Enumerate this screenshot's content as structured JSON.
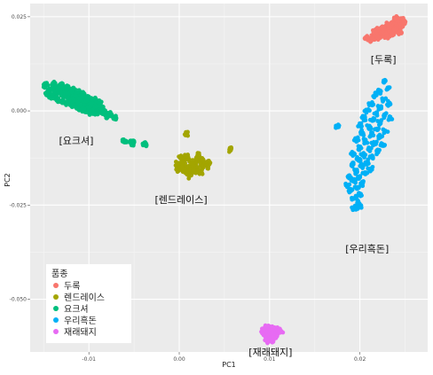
{
  "chart_data": {
    "type": "scatter",
    "xlabel": "PC1",
    "ylabel": "PC2",
    "xlim": [
      -0.0165,
      0.0275
    ],
    "ylim": [
      -0.064,
      0.0285
    ],
    "x_ticks": [
      {
        "value": -0.01,
        "label": "-0.01"
      },
      {
        "value": 0.0,
        "label": "0.00"
      },
      {
        "value": 0.01,
        "label": "0.01"
      },
      {
        "value": 0.02,
        "label": "0.02"
      }
    ],
    "y_ticks": [
      {
        "value": 0.025,
        "label": "0.025"
      },
      {
        "value": 0.0,
        "label": "0.000"
      },
      {
        "value": -0.025,
        "label": "-0.025"
      },
      {
        "value": -0.05,
        "label": "-0.050"
      }
    ],
    "grid": true,
    "panel_background": "#ebebeb",
    "legend": {
      "title": "품종",
      "position": "bottom-left",
      "items": [
        "두록",
        "렌드레이스",
        "요크셔",
        "우리흑돈",
        "재래돼지"
      ]
    },
    "series": [
      {
        "name": "두록",
        "color": "#F8766D",
        "annotation": "[두록]",
        "annotation_at": [
          0.0226,
          0.0127
        ],
        "points": [
          [
            0.0215,
            0.0195
          ],
          [
            0.0218,
            0.0202
          ],
          [
            0.0221,
            0.0206
          ],
          [
            0.0224,
            0.0212
          ],
          [
            0.0226,
            0.0216
          ],
          [
            0.0229,
            0.0219
          ],
          [
            0.0231,
            0.0222
          ],
          [
            0.0234,
            0.0225
          ],
          [
            0.0236,
            0.0228
          ],
          [
            0.0239,
            0.0231
          ],
          [
            0.0241,
            0.0234
          ],
          [
            0.0243,
            0.0237
          ],
          [
            0.0245,
            0.024
          ],
          [
            0.0247,
            0.0242
          ],
          [
            0.0222,
            0.0195
          ],
          [
            0.0228,
            0.0203
          ],
          [
            0.0233,
            0.021
          ],
          [
            0.0238,
            0.0216
          ],
          [
            0.0243,
            0.0223
          ],
          [
            0.0246,
            0.0229
          ],
          [
            0.0212,
            0.0188
          ],
          [
            0.023,
            0.0197
          ],
          [
            0.0236,
            0.0206
          ],
          [
            0.0241,
            0.0214
          ],
          [
            0.022,
            0.0215
          ],
          [
            0.0226,
            0.0222
          ],
          [
            0.0232,
            0.023
          ],
          [
            0.0208,
            0.0192
          ],
          [
            0.0244,
            0.021
          ],
          [
            0.0249,
            0.0236
          ],
          [
            0.024,
            0.0244
          ],
          [
            0.0216,
            0.0208
          ]
        ]
      },
      {
        "name": "렌드레이스",
        "color": "#A3A500",
        "annotation": "[렌드레이스]",
        "annotation_at": [
          0.0002,
          -0.0245
        ],
        "points": [
          [
            0.0002,
            -0.0125
          ],
          [
            0.0008,
            -0.0128
          ],
          [
            0.0013,
            -0.0132
          ],
          [
            0.0018,
            -0.0136
          ],
          [
            0.0022,
            -0.013
          ],
          [
            0.0025,
            -0.014
          ],
          [
            0.0015,
            -0.0145
          ],
          [
            0.001,
            -0.015
          ],
          [
            0.0005,
            -0.0141
          ],
          [
            0.0,
            -0.0147
          ],
          [
            0.002,
            -0.0151
          ],
          [
            0.0027,
            -0.0145
          ],
          [
            0.0012,
            -0.0156
          ],
          [
            0.0006,
            -0.016
          ],
          [
            0.0017,
            -0.0163
          ],
          [
            0.0003,
            -0.0135
          ],
          [
            0.0023,
            -0.0157
          ],
          [
            0.003,
            -0.0138
          ],
          [
            0.0009,
            -0.0166
          ],
          [
            -0.0001,
            -0.0156
          ],
          [
            0.0014,
            -0.0139
          ],
          [
            0.0019,
            -0.0125
          ],
          [
            0.0007,
            -0.0119
          ],
          [
            0.0026,
            -0.0129
          ],
          [
            0.0032,
            -0.0147
          ],
          [
            0.0011,
            -0.0172
          ],
          [
            0.0033,
            -0.0135
          ],
          [
            0.0024,
            -0.0165
          ],
          [
            0.0004,
            -0.0152
          ],
          [
            0.0016,
            -0.0158
          ],
          [
            0.0008,
            -0.0062
          ],
          [
            0.0057,
            -0.0103
          ],
          [
            -0.0002,
            -0.014
          ],
          [
            0.0021,
            -0.0118
          ]
        ]
      },
      {
        "name": "요크셔",
        "color": "#00BF7D",
        "annotation": "[요크셔]",
        "annotation_at": [
          -0.0114,
          -0.0088
        ],
        "points": [
          [
            -0.0148,
            0.0068
          ],
          [
            -0.0144,
            0.0055
          ],
          [
            -0.014,
            0.0062
          ],
          [
            -0.0137,
            0.005
          ],
          [
            -0.0133,
            0.0058
          ],
          [
            -0.013,
            0.0044
          ],
          [
            -0.0127,
            0.0053
          ],
          [
            -0.0124,
            0.0039
          ],
          [
            -0.0121,
            0.0048
          ],
          [
            -0.0118,
            0.0032
          ],
          [
            -0.0115,
            0.0041
          ],
          [
            -0.0112,
            0.0025
          ],
          [
            -0.0109,
            0.0035
          ],
          [
            -0.0106,
            0.0018
          ],
          [
            -0.0103,
            0.0028
          ],
          [
            -0.01,
            0.0012
          ],
          [
            -0.0097,
            0.002
          ],
          [
            -0.0094,
            0.0005
          ],
          [
            -0.0091,
            0.0012
          ],
          [
            -0.0088,
            -0.0001
          ],
          [
            -0.0085,
            0.0004
          ],
          [
            -0.0082,
            -0.0006
          ],
          [
            -0.0146,
            0.0043
          ],
          [
            -0.0141,
            0.0037
          ],
          [
            -0.0135,
            0.0031
          ],
          [
            -0.0129,
            0.0026
          ],
          [
            -0.0123,
            0.0021
          ],
          [
            -0.0117,
            0.0015
          ],
          [
            -0.0111,
            0.0009
          ],
          [
            -0.0105,
            0.0003
          ],
          [
            -0.0099,
            -0.0003
          ],
          [
            -0.0093,
            -0.0008
          ],
          [
            -0.0139,
            0.0073
          ],
          [
            -0.0131,
            0.0067
          ],
          [
            -0.0125,
            0.0061
          ],
          [
            -0.0119,
            0.0056
          ],
          [
            -0.0113,
            0.005
          ],
          [
            -0.0107,
            0.0044
          ],
          [
            -0.0101,
            0.0038
          ],
          [
            -0.0095,
            0.003
          ],
          [
            -0.0089,
            0.0022
          ],
          [
            -0.008,
            -0.0012
          ],
          [
            -0.0075,
            -0.001
          ],
          [
            -0.0071,
            -0.0019
          ],
          [
            -0.006,
            -0.008
          ],
          [
            -0.0052,
            -0.0085
          ],
          [
            -0.0038,
            -0.0088
          ]
        ]
      },
      {
        "name": "우리흑돈",
        "color": "#00B0F6",
        "annotation": "[우리흑돈]",
        "annotation_at": [
          0.0208,
          -0.0375
        ],
        "points": [
          [
            0.0228,
            0.008
          ],
          [
            0.0223,
            0.0052
          ],
          [
            0.0217,
            0.0041
          ],
          [
            0.0226,
            0.003
          ],
          [
            0.0212,
            0.0018
          ],
          [
            0.0221,
            0.001
          ],
          [
            0.0208,
            0.0002
          ],
          [
            0.0218,
            -0.0006
          ],
          [
            0.0227,
            -0.0012
          ],
          [
            0.0205,
            -0.0018
          ],
          [
            0.0214,
            -0.0024
          ],
          [
            0.0222,
            -0.003
          ],
          [
            0.02,
            -0.0036
          ],
          [
            0.021,
            -0.0042
          ],
          [
            0.0219,
            -0.0048
          ],
          [
            0.0228,
            -0.0053
          ],
          [
            0.0203,
            -0.0058
          ],
          [
            0.0213,
            -0.0064
          ],
          [
            0.0222,
            -0.007
          ],
          [
            0.0196,
            -0.0075
          ],
          [
            0.0206,
            -0.008
          ],
          [
            0.0216,
            -0.0086
          ],
          [
            0.0225,
            -0.0092
          ],
          [
            0.02,
            -0.0097
          ],
          [
            0.021,
            -0.0102
          ],
          [
            0.0219,
            -0.0108
          ],
          [
            0.0193,
            -0.0113
          ],
          [
            0.0204,
            -0.0118
          ],
          [
            0.0214,
            -0.0124
          ],
          [
            0.0198,
            -0.013
          ],
          [
            0.0208,
            -0.0136
          ],
          [
            0.0191,
            -0.0142
          ],
          [
            0.0202,
            -0.0148
          ],
          [
            0.0212,
            -0.0154
          ],
          [
            0.0195,
            -0.016
          ],
          [
            0.0206,
            -0.0166
          ],
          [
            0.0188,
            -0.0172
          ],
          [
            0.0199,
            -0.0178
          ],
          [
            0.0193,
            -0.0186
          ],
          [
            0.0203,
            -0.0192
          ],
          [
            0.0186,
            -0.0198
          ],
          [
            0.0197,
            -0.0205
          ],
          [
            0.019,
            -0.0212
          ],
          [
            0.02,
            -0.022
          ],
          [
            0.0194,
            -0.0232
          ],
          [
            0.0198,
            -0.0245
          ],
          [
            0.0196,
            -0.0254
          ],
          [
            0.0201,
            -0.0251
          ],
          [
            0.0193,
            -0.0258
          ],
          [
            0.0174,
            -0.004
          ],
          [
            0.0231,
            0.006
          ],
          [
            0.0232,
            0.002
          ],
          [
            0.0233,
            -0.002
          ]
        ]
      },
      {
        "name": "재래돼지",
        "color": "#E76BF3",
        "annotation": "[재래돼지]",
        "annotation_at": [
          0.0101,
          -0.065
        ],
        "points": [
          [
            0.0095,
            -0.0575
          ],
          [
            0.0099,
            -0.0572
          ],
          [
            0.0103,
            -0.0574
          ],
          [
            0.0107,
            -0.0577
          ],
          [
            0.0111,
            -0.0579
          ],
          [
            0.0093,
            -0.0582
          ],
          [
            0.0097,
            -0.0585
          ],
          [
            0.0101,
            -0.0583
          ],
          [
            0.0105,
            -0.0587
          ],
          [
            0.0109,
            -0.0589
          ],
          [
            0.0095,
            -0.0592
          ],
          [
            0.0099,
            -0.0595
          ],
          [
            0.0103,
            -0.0593
          ],
          [
            0.0107,
            -0.0598
          ],
          [
            0.0097,
            -0.0602
          ],
          [
            0.0101,
            -0.0605
          ],
          [
            0.0105,
            -0.0603
          ],
          [
            0.0099,
            -0.0612
          ],
          [
            0.0102,
            -0.061
          ],
          [
            0.0096,
            -0.0607
          ],
          [
            0.0112,
            -0.0585
          ],
          [
            0.0092,
            -0.059
          ]
        ]
      }
    ]
  }
}
